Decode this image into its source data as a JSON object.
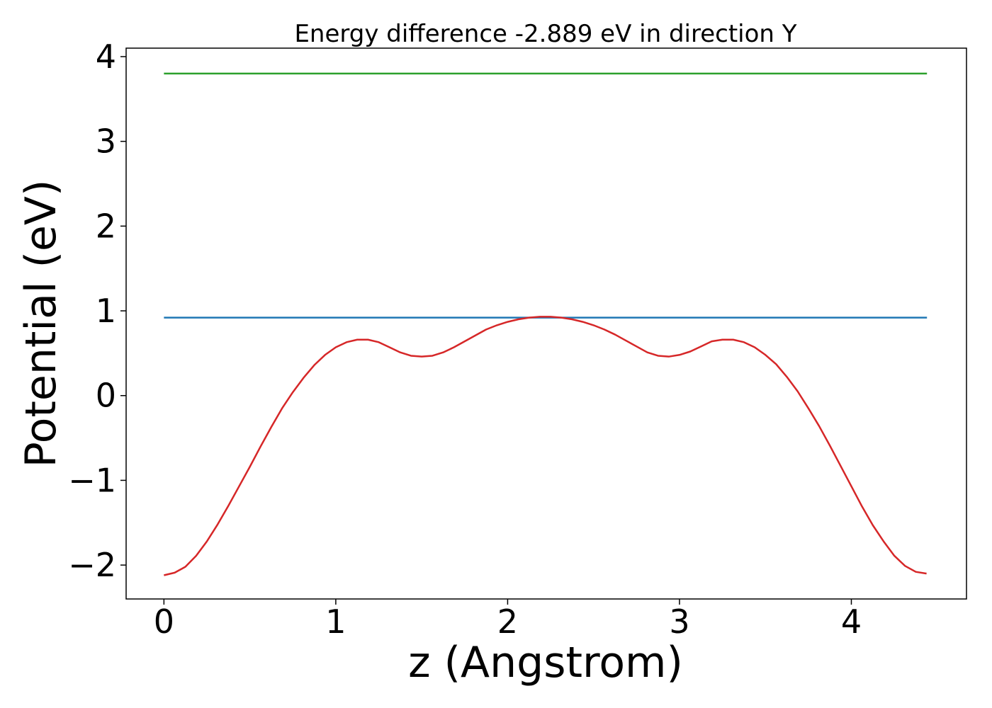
{
  "chart_data": {
    "type": "line",
    "title": "Energy difference -2.889 eV in direction Y",
    "xlabel": "z (Angstrom)",
    "ylabel": "Potential (eV)",
    "xlim": [
      -0.22,
      4.67
    ],
    "ylim": [
      -2.4,
      4.1
    ],
    "xticks": [
      0,
      1,
      2,
      3,
      4
    ],
    "xtick_labels": [
      "0",
      "1",
      "2",
      "3",
      "4"
    ],
    "yticks": [
      -2,
      -1,
      0,
      1,
      2,
      3,
      4
    ],
    "ytick_labels": [
      "−2",
      "−1",
      "0",
      "1",
      "2",
      "3",
      "4"
    ],
    "grid": false,
    "series": [
      {
        "color": "#1f77b4",
        "x": [
          0,
          4.44
        ],
        "y": [
          0.92,
          0.92
        ]
      },
      {
        "color": "#2ca02c",
        "x": [
          0,
          4.44
        ],
        "y": [
          3.8,
          3.8
        ]
      },
      {
        "color": "#d62728",
        "x": [
          0,
          0.0625,
          0.125,
          0.1875,
          0.25,
          0.3125,
          0.375,
          0.4375,
          0.5,
          0.5625,
          0.625,
          0.6875,
          0.75,
          0.8125,
          0.875,
          0.9375,
          1.0,
          1.0625,
          1.125,
          1.1875,
          1.25,
          1.3125,
          1.375,
          1.4375,
          1.5,
          1.5625,
          1.625,
          1.6875,
          1.75,
          1.8125,
          1.875,
          1.9375,
          2.0,
          2.0625,
          2.125,
          2.1875,
          2.25,
          2.3125,
          2.375,
          2.4375,
          2.5,
          2.5625,
          2.625,
          2.6875,
          2.75,
          2.8125,
          2.875,
          2.9375,
          3.0,
          3.0625,
          3.125,
          3.1875,
          3.25,
          3.3125,
          3.375,
          3.4375,
          3.5,
          3.5625,
          3.625,
          3.6875,
          3.75,
          3.8125,
          3.875,
          3.9375,
          4.0,
          4.0625,
          4.125,
          4.1875,
          4.25,
          4.3125,
          4.375,
          4.4375
        ],
        "y": [
          -2.12,
          -2.09,
          -2.02,
          -1.89,
          -1.72,
          -1.52,
          -1.3,
          -1.07,
          -0.84,
          -0.6,
          -0.37,
          -0.15,
          0.04,
          0.21,
          0.36,
          0.48,
          0.57,
          0.63,
          0.66,
          0.66,
          0.63,
          0.57,
          0.51,
          0.47,
          0.46,
          0.47,
          0.51,
          0.57,
          0.64,
          0.71,
          0.78,
          0.83,
          0.87,
          0.9,
          0.92,
          0.93,
          0.93,
          0.92,
          0.9,
          0.87,
          0.83,
          0.78,
          0.72,
          0.65,
          0.58,
          0.51,
          0.47,
          0.46,
          0.48,
          0.52,
          0.58,
          0.64,
          0.66,
          0.66,
          0.63,
          0.57,
          0.48,
          0.37,
          0.22,
          0.05,
          -0.15,
          -0.36,
          -0.59,
          -0.83,
          -1.07,
          -1.31,
          -1.53,
          -1.72,
          -1.89,
          -2.01,
          -2.08,
          -2.1
        ]
      }
    ]
  }
}
